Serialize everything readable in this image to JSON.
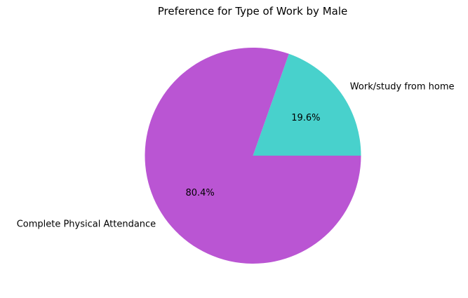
{
  "chart_data": {
    "type": "pie",
    "title": "Preference for Type of Work by Male",
    "labels": [
      "Work/study from home",
      "Complete Physical Attendance"
    ],
    "values": [
      19.6,
      80.4
    ],
    "pct_labels": [
      "19.6%",
      "80.4%"
    ],
    "colors": [
      "#48D1CC",
      "#BA55D3"
    ],
    "start_angle_deg": 0,
    "direction": "clockwise-in-screen"
  }
}
